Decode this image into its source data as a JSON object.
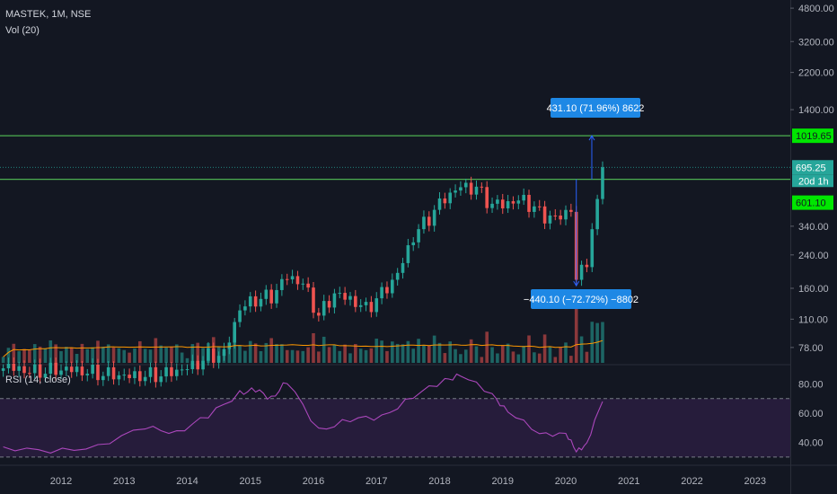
{
  "header": {
    "symbol_line": "MASTEK, 1M, NSE",
    "volume_label": "Vol (20)",
    "rsi_label": "RSI (14, close)"
  },
  "price_axis": {
    "ticks": [
      "4800.00",
      "3200.00",
      "2200.00",
      "1400.00",
      "1019.65",
      "695.25",
      "20d 1h",
      "601.10",
      "340.00",
      "240.00",
      "160.00",
      "110.00",
      "78.00"
    ]
  },
  "rsi_axis": {
    "ticks": [
      "80.00",
      "60.00",
      "40.00"
    ]
  },
  "time_axis": {
    "ticks": [
      "2012",
      "2013",
      "2014",
      "2015",
      "2016",
      "2017",
      "2018",
      "2019",
      "2020",
      "2021",
      "2022",
      "2023"
    ]
  },
  "annotations": {
    "up_measure": "431.10 (71.96%) 8622",
    "down_measure": "−440.10 (−72.72%) −8802"
  },
  "colors": {
    "background": "#131722",
    "up": "#26a69a",
    "down": "#ef5350",
    "level_line": "#4caf50",
    "level_label": "#00e600",
    "rsi_line": "#ab47bc",
    "rsi_band": "#2a1d3f",
    "volume_ma": "#ff9800",
    "measure": "#2962ff"
  },
  "chart_data": {
    "type": "candlestick",
    "symbol": "MASTEK",
    "interval": "1M",
    "exchange": "NSE",
    "y_scale": "log",
    "levels": [
      1019.65,
      601.1
    ],
    "last_price": 695.25,
    "approx_close_path": [
      {
        "date": "2011-02",
        "close": 62
      },
      {
        "date": "2011-08",
        "close": 58
      },
      {
        "date": "2012-02",
        "close": 60
      },
      {
        "date": "2012-08",
        "close": 57
      },
      {
        "date": "2013-02",
        "close": 55
      },
      {
        "date": "2013-08",
        "close": 56
      },
      {
        "date": "2014-02",
        "close": 62
      },
      {
        "date": "2014-05",
        "close": 70
      },
      {
        "date": "2014-08",
        "close": 72
      },
      {
        "date": "2014-11",
        "close": 125
      },
      {
        "date": "2015-02",
        "close": 140
      },
      {
        "date": "2015-05",
        "close": 145
      },
      {
        "date": "2015-08",
        "close": 185
      },
      {
        "date": "2015-11",
        "close": 170
      },
      {
        "date": "2016-02",
        "close": 115
      },
      {
        "date": "2016-05",
        "close": 150
      },
      {
        "date": "2016-08",
        "close": 140
      },
      {
        "date": "2016-11",
        "close": 125
      },
      {
        "date": "2017-02",
        "close": 150
      },
      {
        "date": "2017-05",
        "close": 190
      },
      {
        "date": "2017-08",
        "close": 300
      },
      {
        "date": "2017-11",
        "close": 380
      },
      {
        "date": "2018-02",
        "close": 480
      },
      {
        "date": "2018-05",
        "close": 550
      },
      {
        "date": "2018-08",
        "close": 540
      },
      {
        "date": "2018-11",
        "close": 440
      },
      {
        "date": "2019-02",
        "close": 450
      },
      {
        "date": "2019-05",
        "close": 470
      },
      {
        "date": "2019-08",
        "close": 400
      },
      {
        "date": "2019-11",
        "close": 370
      },
      {
        "date": "2020-02",
        "close": 420
      },
      {
        "date": "2020-03",
        "close": 175
      },
      {
        "date": "2020-05",
        "close": 230
      },
      {
        "date": "2020-07",
        "close": 440
      },
      {
        "date": "2020-08",
        "close": 695.25
      }
    ],
    "rsi": {
      "overbought": 70,
      "oversold": 30,
      "approx_path": [
        {
          "date": "2011-02",
          "value": 37
        },
        {
          "date": "2011-11",
          "value": 33
        },
        {
          "date": "2012-08",
          "value": 38
        },
        {
          "date": "2013-05",
          "value": 50
        },
        {
          "date": "2013-11",
          "value": 47
        },
        {
          "date": "2014-05",
          "value": 58
        },
        {
          "date": "2014-11",
          "value": 74
        },
        {
          "date": "2015-02",
          "value": 76
        },
        {
          "date": "2015-05",
          "value": 70
        },
        {
          "date": "2015-08",
          "value": 82
        },
        {
          "date": "2016-02",
          "value": 48
        },
        {
          "date": "2016-08",
          "value": 56
        },
        {
          "date": "2017-02",
          "value": 57
        },
        {
          "date": "2017-08",
          "value": 72
        },
        {
          "date": "2018-02",
          "value": 82
        },
        {
          "date": "2018-05",
          "value": 87
        },
        {
          "date": "2018-11",
          "value": 72
        },
        {
          "date": "2019-02",
          "value": 62
        },
        {
          "date": "2019-08",
          "value": 45
        },
        {
          "date": "2020-01",
          "value": 47
        },
        {
          "date": "2020-03",
          "value": 33
        },
        {
          "date": "2020-05",
          "value": 40
        },
        {
          "date": "2020-08",
          "value": 68
        }
      ]
    }
  }
}
